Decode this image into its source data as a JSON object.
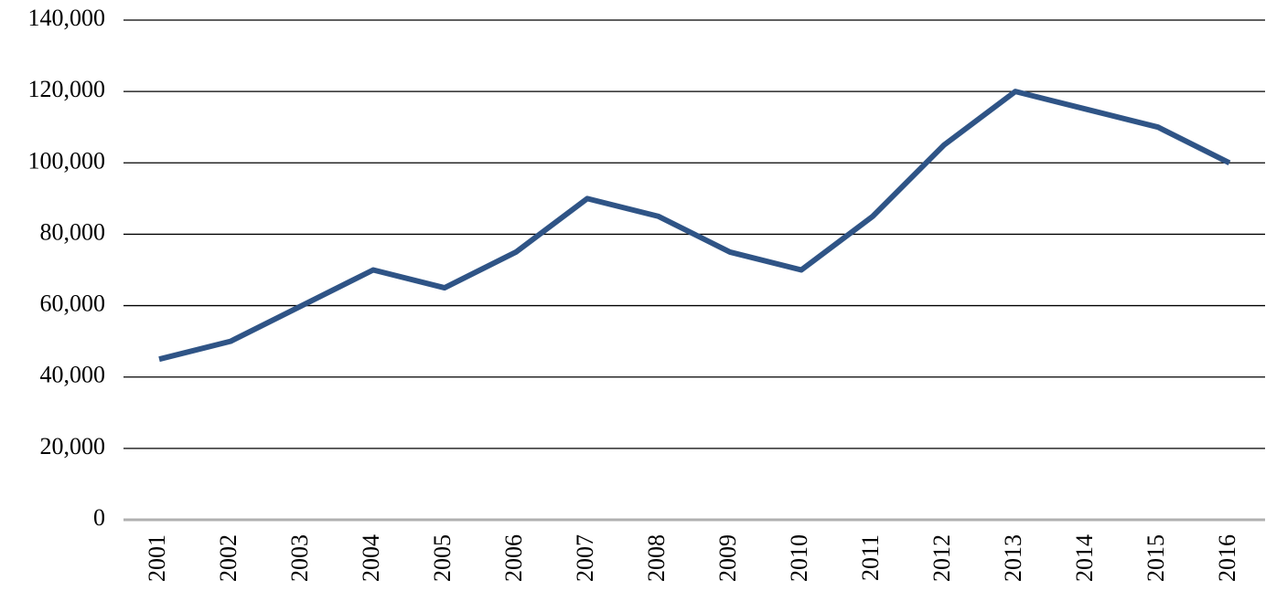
{
  "chart_data": {
    "type": "line",
    "categories": [
      "2001",
      "2002",
      "2003",
      "2004",
      "2005",
      "2006",
      "2007",
      "2008",
      "2009",
      "2010",
      "2011",
      "2012",
      "2013",
      "2014",
      "2015",
      "2016"
    ],
    "values": [
      45000,
      50000,
      60000,
      70000,
      65000,
      75000,
      90000,
      85000,
      75000,
      70000,
      85000,
      105000,
      120000,
      115000,
      110000,
      100000
    ],
    "color": "#2f5486",
    "ylim": [
      0,
      140000
    ],
    "yticks": [
      0,
      {
        "value": 20000,
        "label": "20,000"
      },
      {
        "value": 40000,
        "label": "40,000"
      },
      {
        "value": 60000,
        "label": "60,000"
      },
      {
        "value": 80000,
        "label": "80,000"
      },
      {
        "value": 100000,
        "label": "100,000"
      },
      {
        "value": 120000,
        "label": "120,000"
      },
      {
        "value": 140000,
        "label": "140,000"
      }
    ],
    "grid": true
  }
}
